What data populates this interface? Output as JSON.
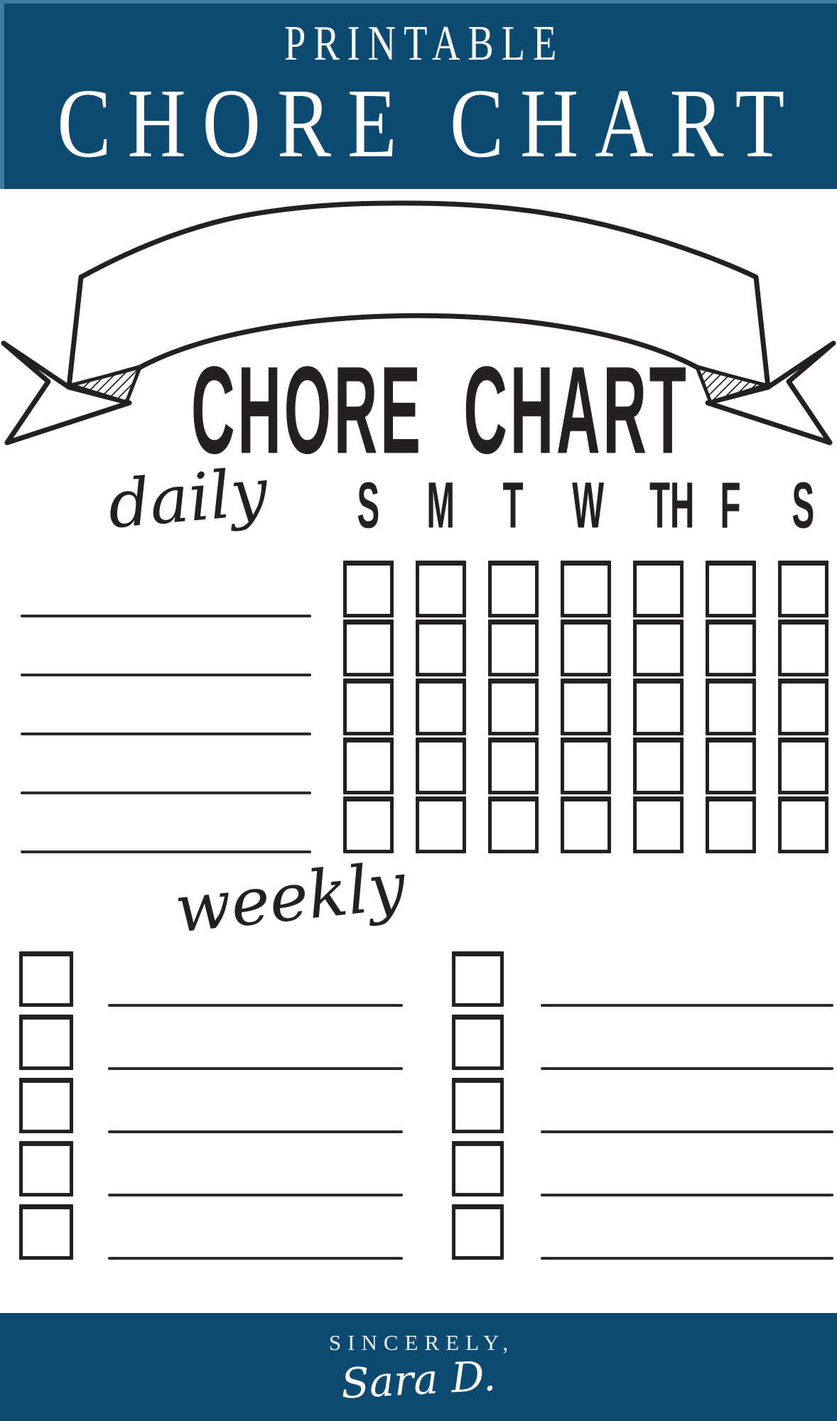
{
  "header": {
    "eyebrow": "PRINTABLE",
    "title": "CHORE CHART"
  },
  "banner": {
    "title": "CHORE CHART"
  },
  "daily": {
    "label": "daily",
    "day_headers": [
      "S",
      "M",
      "T",
      "W",
      "TH",
      "F",
      "S"
    ],
    "task_rows": 5,
    "tasks": [
      "",
      "",
      "",
      "",
      ""
    ],
    "checkbox_state": "unchecked"
  },
  "weekly": {
    "label": "weekly",
    "columns": [
      {
        "rows": 5,
        "tasks": [
          "",
          "",
          "",
          "",
          ""
        ]
      },
      {
        "rows": 5,
        "tasks": [
          "",
          "",
          "",
          "",
          ""
        ]
      }
    ],
    "checkbox_state": "unchecked"
  },
  "footer": {
    "closing": "SINCERELY,",
    "signature": "Sara D."
  },
  "colors": {
    "brand_blue": "#0D4A72",
    "ink": "#242021",
    "paper": "#FFFFFF"
  }
}
